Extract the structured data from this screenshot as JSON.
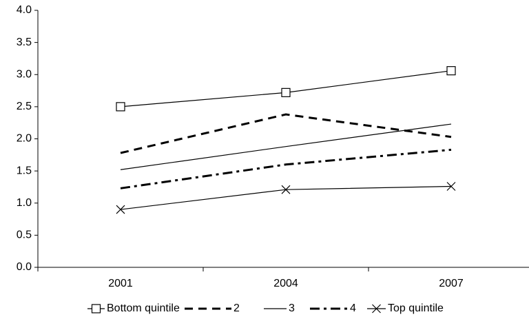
{
  "chart_data": {
    "type": "line",
    "categories": [
      "2001",
      "2004",
      "2007"
    ],
    "series": [
      {
        "name": "Bottom quintile",
        "color": "#000000",
        "line_style": "solid",
        "marker": "square",
        "values": [
          2.5,
          2.72,
          3.06
        ]
      },
      {
        "name": "2",
        "color": "#000000",
        "line_style": "dashed",
        "marker": null,
        "values": [
          1.78,
          2.38,
          2.03
        ]
      },
      {
        "name": "3",
        "color": "#000000",
        "line_style": "solid",
        "marker": null,
        "values": [
          1.52,
          1.88,
          2.23
        ]
      },
      {
        "name": "4",
        "color": "#000000",
        "line_style": "dashdot",
        "marker": null,
        "values": [
          1.23,
          1.6,
          1.83
        ]
      },
      {
        "name": "Top quintile",
        "color": "#000000",
        "line_style": "solid",
        "marker": "x",
        "values": [
          0.9,
          1.21,
          1.26
        ]
      }
    ],
    "ylim": [
      0,
      4
    ],
    "yticks": [
      {
        "value": 0,
        "label": "0.0"
      },
      0.5,
      {
        "value": 1,
        "label": "1.0"
      },
      1.5,
      {
        "value": 2,
        "label": "2.0"
      },
      2.5,
      {
        "value": 3,
        "label": "3.0"
      },
      3.5,
      {
        "value": 4,
        "label": "4.0"
      }
    ],
    "grid": false,
    "legend": "bottom"
  }
}
